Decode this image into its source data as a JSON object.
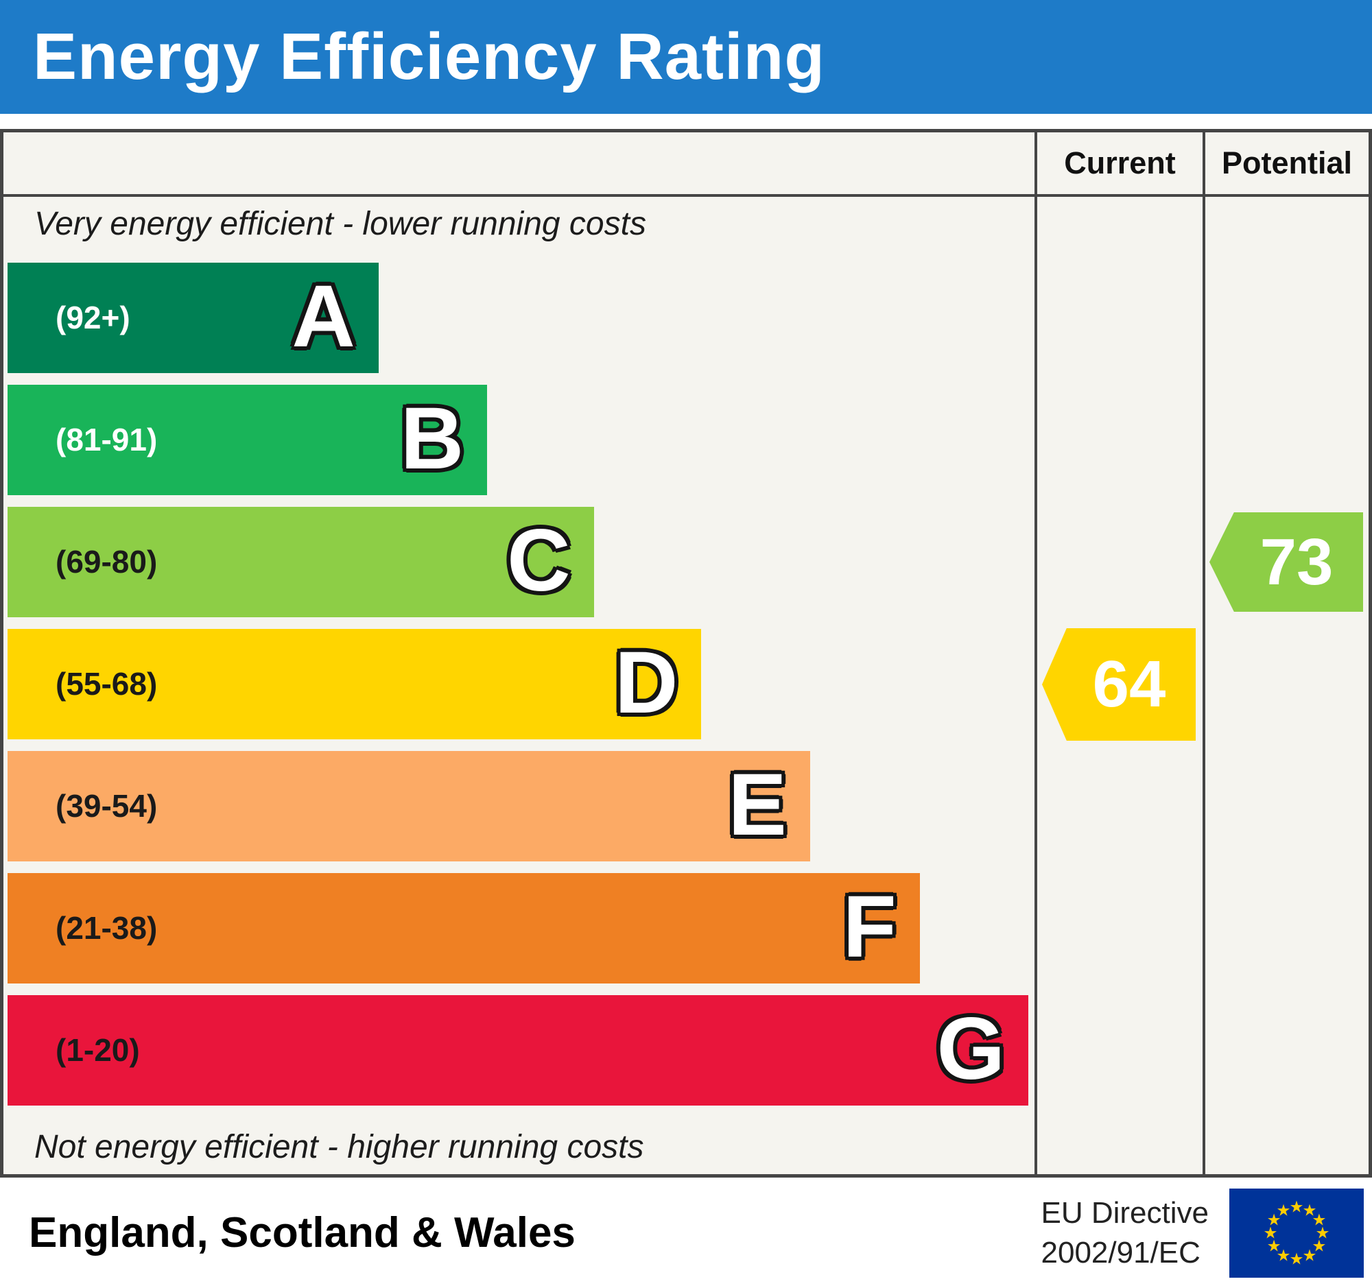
{
  "header": {
    "title": "Energy Efficiency Rating",
    "bg_color": "#1e7bc8"
  },
  "columns": {
    "current_label": "Current",
    "potential_label": "Potential"
  },
  "notes": {
    "top": "Very energy efficient - lower running costs",
    "bottom": "Not energy efficient - higher running costs"
  },
  "footer": {
    "region": "England, Scotland & Wales",
    "directive_line1": "EU Directive",
    "directive_line2": "2002/91/EC",
    "flag_icon": "eu-flag-icon",
    "flag_blue": "#003399",
    "flag_star_color": "#ffcc00"
  },
  "chart_data": {
    "type": "bar",
    "title": "Energy Efficiency Rating",
    "xlabel": "",
    "ylabel": "",
    "legend": [
      "Current",
      "Potential"
    ],
    "bands": [
      {
        "letter": "A",
        "range": "(92+)",
        "min": 92,
        "max": 100,
        "color": "#008054",
        "width_pct": 36.2,
        "range_text_color": "#ffffff"
      },
      {
        "letter": "B",
        "range": "(81-91)",
        "min": 81,
        "max": 91,
        "color": "#19b459",
        "width_pct": 46.8,
        "range_text_color": "#ffffff"
      },
      {
        "letter": "C",
        "range": "(69-80)",
        "min": 69,
        "max": 80,
        "color": "#8dce46",
        "width_pct": 57.2,
        "range_text_color": "#1a1a1a"
      },
      {
        "letter": "D",
        "range": "(55-68)",
        "min": 55,
        "max": 68,
        "color": "#ffd500",
        "width_pct": 67.7,
        "range_text_color": "#1a1a1a"
      },
      {
        "letter": "E",
        "range": "(39-54)",
        "min": 39,
        "max": 54,
        "color": "#fcaa65",
        "width_pct": 78.3,
        "range_text_color": "#1a1a1a"
      },
      {
        "letter": "F",
        "range": "(21-38)",
        "min": 21,
        "max": 38,
        "color": "#ef8023",
        "width_pct": 89.0,
        "range_text_color": "#1a1a1a"
      },
      {
        "letter": "G",
        "range": "(1-20)",
        "min": 1,
        "max": 20,
        "color": "#e9153b",
        "width_pct": 99.6,
        "range_text_color": "#1a1a1a"
      }
    ],
    "current": {
      "value": 64,
      "band": "D",
      "color": "#ffd500"
    },
    "potential": {
      "value": 73,
      "band": "C",
      "color": "#8dce46"
    }
  }
}
